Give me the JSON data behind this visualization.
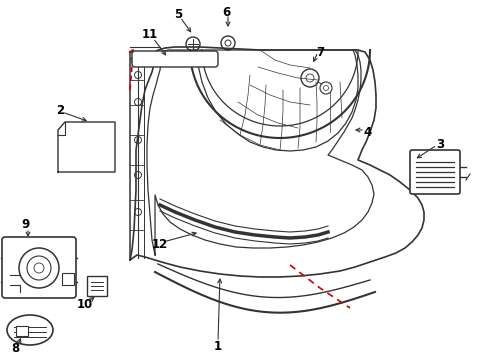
{
  "bg_color": "#ffffff",
  "line_color": "#333333",
  "red_color": "#cc0000",
  "label_color": "#000000",
  "label_fontsize": 8.5,
  "figsize": [
    4.9,
    3.6
  ],
  "dpi": 100
}
